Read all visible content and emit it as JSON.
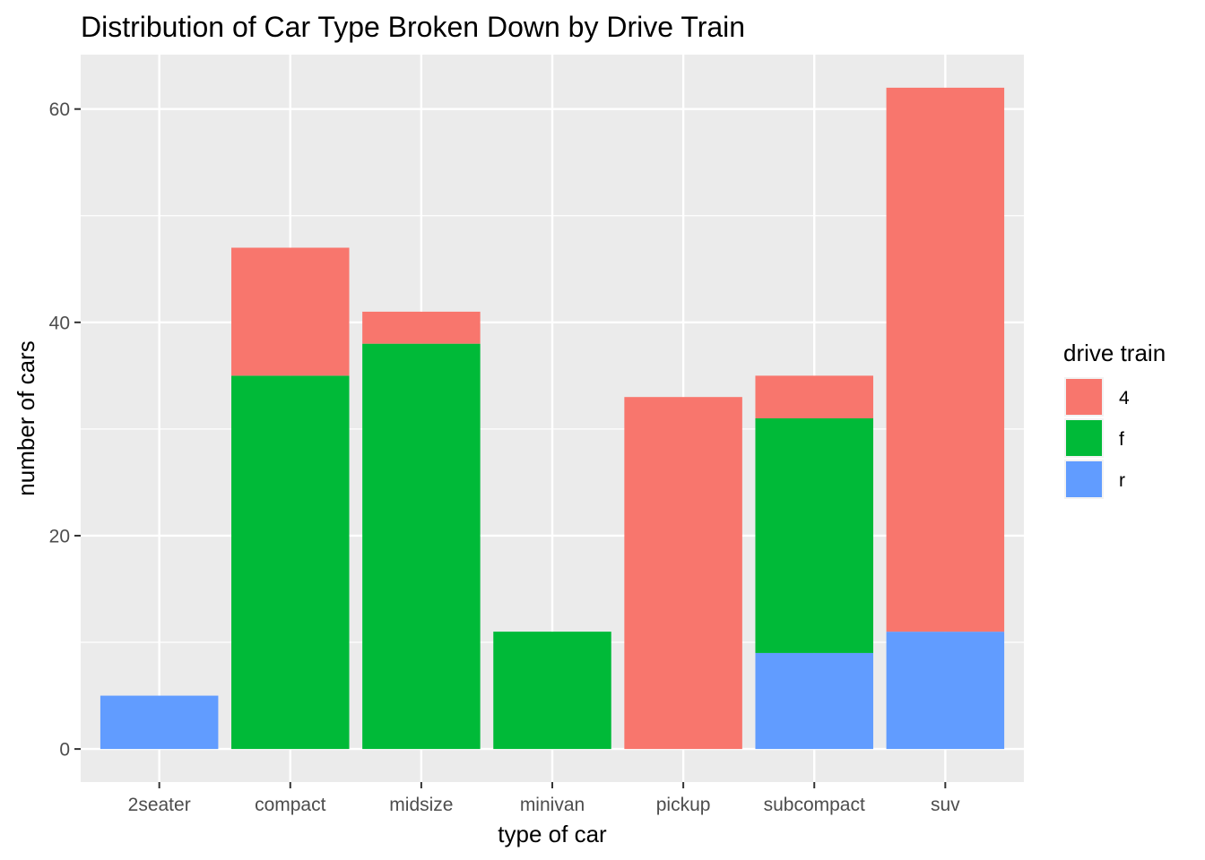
{
  "chart_data": {
    "type": "bar",
    "stacked": true,
    "title": "Distribution of Car Type Broken Down by Drive Train",
    "xlabel": "type of car",
    "ylabel": "number of cars",
    "categories": [
      "2seater",
      "compact",
      "midsize",
      "minivan",
      "pickup",
      "subcompact",
      "suv"
    ],
    "series": [
      {
        "name": "4",
        "color": "#F8766D",
        "values": [
          0,
          12,
          3,
          0,
          33,
          4,
          51
        ]
      },
      {
        "name": "f",
        "color": "#00BA38",
        "values": [
          0,
          35,
          38,
          11,
          0,
          22,
          0
        ]
      },
      {
        "name": "r",
        "color": "#619CFF",
        "values": [
          5,
          0,
          0,
          0,
          0,
          9,
          11
        ]
      }
    ],
    "yticks": [
      0,
      20,
      40,
      60
    ],
    "ylim": [
      -3.1,
      65.1
    ],
    "grid": true,
    "legend": {
      "title": "drive train",
      "position": "right"
    }
  }
}
